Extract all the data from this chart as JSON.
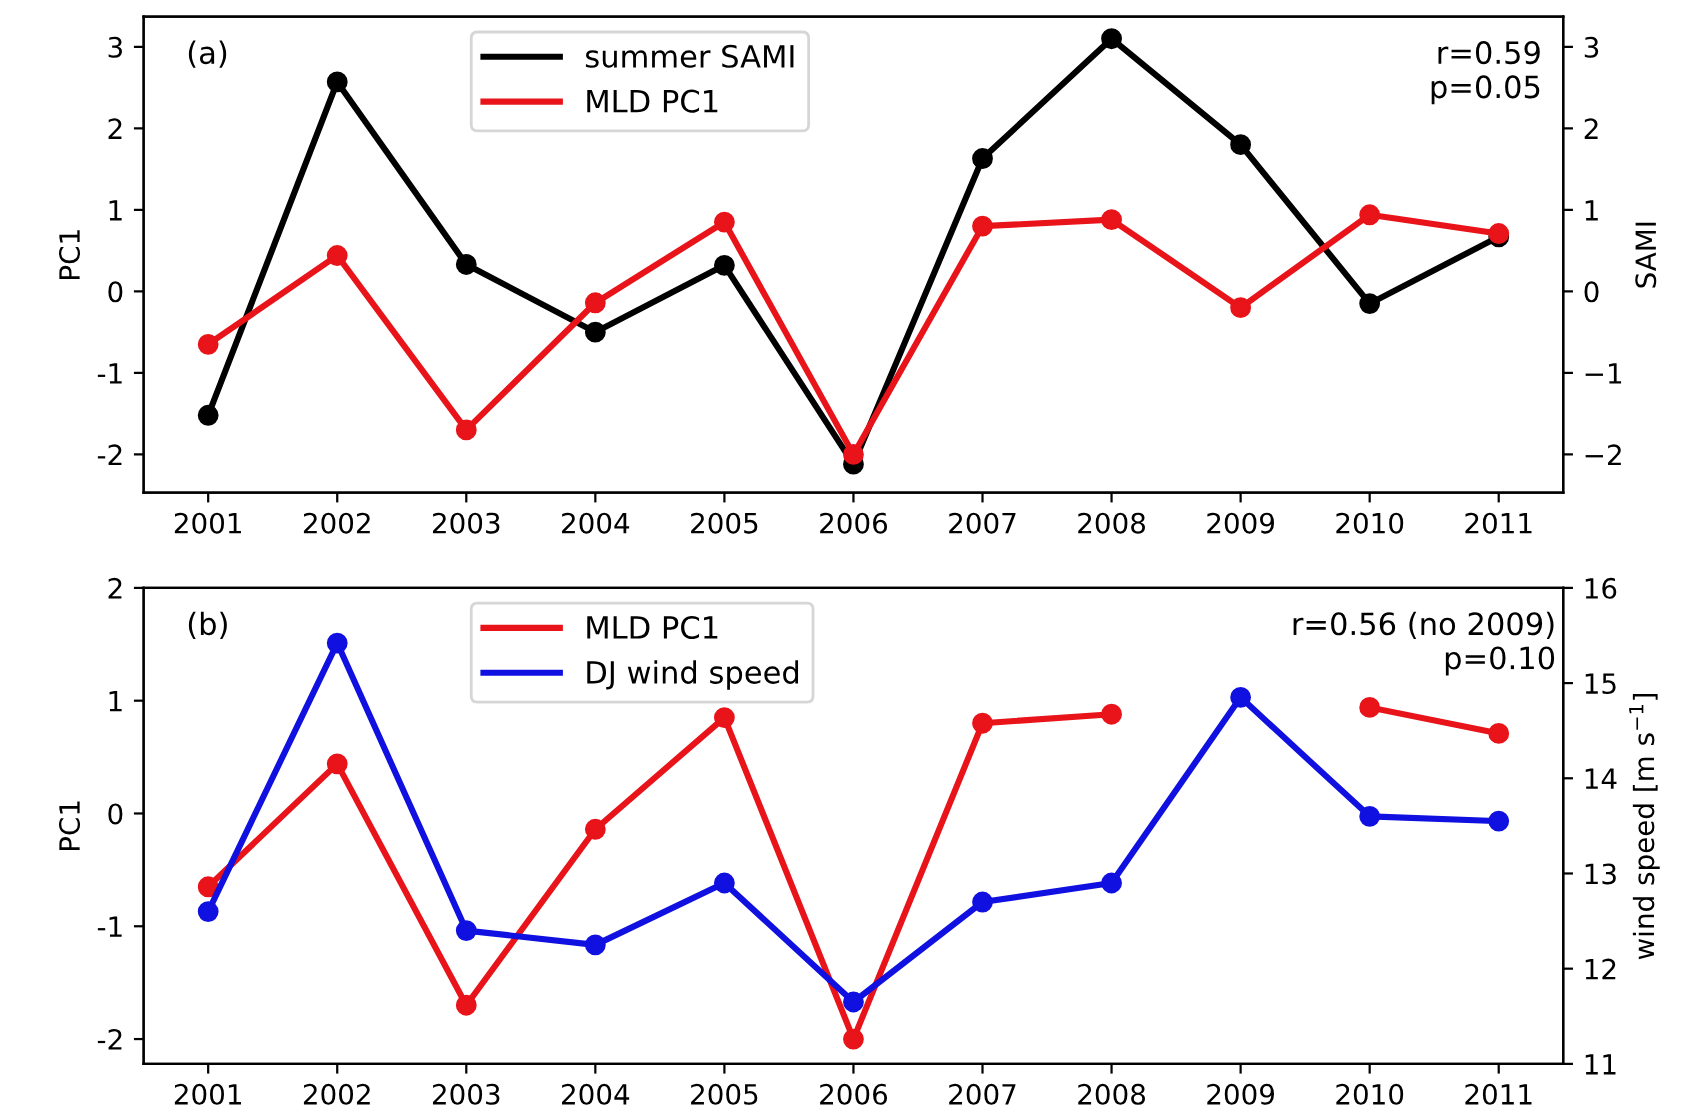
{
  "chart_data": [
    {
      "type": "line",
      "annotations": [
        "(a)",
        "r=0.59\np=0.05"
      ],
      "ylabel": "PC1",
      "y2label": "SAMI",
      "x": [
        2001,
        2002,
        2003,
        2004,
        2005,
        2006,
        2007,
        2008,
        2009,
        2010,
        2011
      ],
      "xlim": [
        2000.5,
        2011.5
      ],
      "xticks": [
        2001,
        2002,
        2003,
        2004,
        2005,
        2006,
        2007,
        2008,
        2009,
        2010,
        2011
      ],
      "ylim": [
        -2.47,
        3.37
      ],
      "yticks": [
        -2,
        -1,
        0,
        1,
        2,
        3
      ],
      "y2lim": [
        -2.47,
        3.37
      ],
      "y2ticks": [
        {
          "value": -2,
          "label": "−2"
        },
        {
          "value": -1,
          "label": "−1"
        },
        0,
        1,
        2,
        3
      ],
      "marker": "circle",
      "legend": "top",
      "grid": false,
      "series": [
        {
          "name": "summer SAMI",
          "color": "#000000",
          "axis": "y2",
          "values": [
            -1.52,
            2.57,
            0.33,
            -0.5,
            0.32,
            -2.12,
            1.63,
            3.1,
            1.8,
            -0.15,
            0.67
          ]
        },
        {
          "name": "MLD PC1",
          "color": "#e8141a",
          "values": [
            -0.65,
            0.44,
            -1.7,
            -0.14,
            0.85,
            -2.0,
            0.8,
            0.88,
            -0.2,
            0.94,
            0.71
          ]
        }
      ]
    },
    {
      "type": "line",
      "annotations": [
        "(b)",
        "r=0.56 (no 2009)\np=0.10"
      ],
      "ylabel": "PC1",
      "y2label": "wind speed [m s$^{−1}$]",
      "x": [
        2001,
        2002,
        2003,
        2004,
        2005,
        2006,
        2007,
        2008,
        2009,
        2010,
        2011
      ],
      "xlim": [
        2000.5,
        2011.5
      ],
      "xticks": [
        2001,
        2002,
        2003,
        2004,
        2005,
        2006,
        2007,
        2008,
        2009,
        2010,
        2011
      ],
      "ylim": [
        -2.22,
        2
      ],
      "yticks": [
        -2,
        -1,
        0,
        1,
        2
      ],
      "y2lim": [
        11,
        16
      ],
      "y2ticks": [
        11,
        12,
        13,
        14,
        15,
        16
      ],
      "marker": "circle",
      "legend": "top",
      "grid": false,
      "series": [
        {
          "name": "MLD PC1",
          "color": "#e8141a",
          "values": [
            -0.65,
            0.44,
            -1.7,
            -0.14,
            0.85,
            -2.0,
            0.8,
            0.88,
            null,
            0.94,
            0.71
          ]
        },
        {
          "name": "DJ wind speed",
          "color": "#1010e0",
          "axis": "y2",
          "values": [
            12.6,
            15.42,
            12.4,
            12.25,
            12.9,
            11.65,
            12.7,
            12.9,
            14.85,
            13.6,
            13.55
          ]
        }
      ]
    }
  ]
}
